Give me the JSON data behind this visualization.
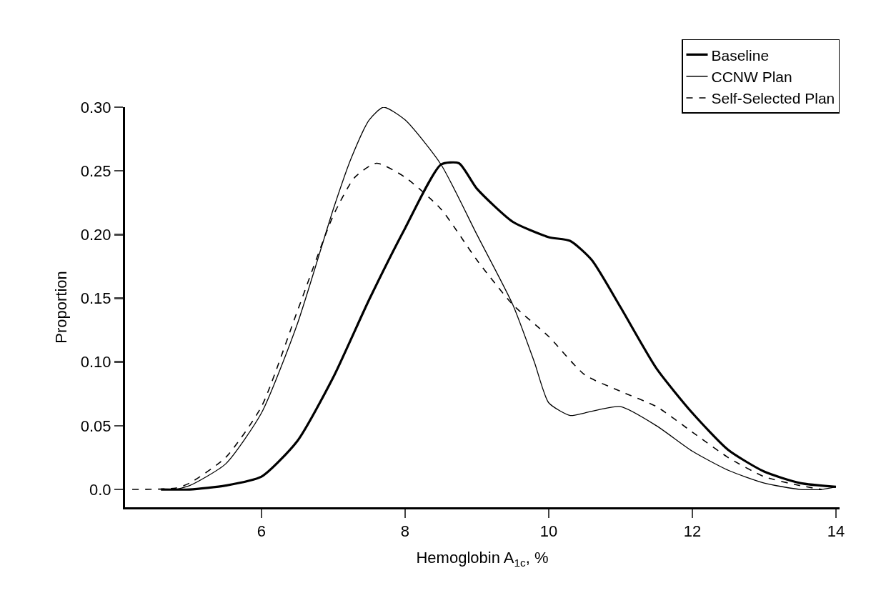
{
  "chart_data": {
    "type": "line",
    "xlabel": "Hemoglobin A$_{1c}$, %",
    "ylabel": "Proportion",
    "xlim": [
      4.1,
      14.05
    ],
    "ylim": [
      -0.014,
      0.3
    ],
    "xticks": [
      6,
      8,
      10,
      12,
      14
    ],
    "yticks": [
      {
        "value": 0,
        "label": "0.0"
      },
      {
        "value": 0.05,
        "label": "0.05"
      },
      {
        "value": 0.1,
        "label": "0.10"
      },
      {
        "value": 0.15,
        "label": "0.15"
      },
      {
        "value": 0.2,
        "label": "0.20"
      },
      {
        "value": 0.25,
        "label": "0.25"
      },
      {
        "value": 0.3,
        "label": "0.30"
      }
    ],
    "grid": false,
    "legend": "top right",
    "marker": "none",
    "series": [
      {
        "name": "Baseline",
        "color": "#000000",
        "line_style": "solid",
        "x": [
          4.6,
          5,
          5.5,
          6,
          6.5,
          7,
          7.5,
          8,
          8.5,
          8.75,
          9,
          9.5,
          10,
          10.3,
          10.6,
          11,
          11.5,
          12,
          12.5,
          13,
          13.5,
          14
        ],
        "values": [
          0,
          0,
          0.003,
          0.01,
          0.038,
          0.088,
          0.149,
          0.205,
          0.255,
          0.256,
          0.236,
          0.21,
          0.198,
          0.195,
          0.18,
          0.143,
          0.095,
          0.06,
          0.031,
          0.014,
          0.005,
          0.002
        ]
      },
      {
        "name": "CCNW Plan",
        "color": "#000000",
        "line_style": "solid",
        "x": [
          4.8,
          5,
          5.5,
          6,
          6.5,
          7,
          7.25,
          7.5,
          7.7,
          8,
          8.5,
          9,
          9.5,
          9.8,
          10,
          10.3,
          10.5,
          11,
          11.5,
          12,
          12.5,
          13,
          13.5,
          13.8,
          14
        ],
        "values": [
          0,
          0.003,
          0.02,
          0.06,
          0.13,
          0.22,
          0.26,
          0.29,
          0.3,
          0.29,
          0.255,
          0.2,
          0.145,
          0.1,
          0.068,
          0.058,
          0.06,
          0.065,
          0.05,
          0.03,
          0.015,
          0.005,
          0,
          0,
          0.002
        ]
      },
      {
        "name": "Self-Selected Plan",
        "color": "#000000",
        "line_style": "dashed",
        "x": [
          4.2,
          4.8,
          5,
          5.5,
          6,
          6.5,
          7,
          7.3,
          7.6,
          8,
          8.5,
          9,
          9.5,
          10,
          10.5,
          11,
          11.5,
          12,
          12.5,
          13,
          13.5,
          13.8
        ],
        "values": [
          0,
          0.001,
          0.005,
          0.025,
          0.065,
          0.14,
          0.215,
          0.245,
          0.256,
          0.245,
          0.22,
          0.18,
          0.145,
          0.12,
          0.09,
          0.077,
          0.065,
          0.045,
          0.025,
          0.01,
          0.003,
          0
        ]
      }
    ]
  }
}
